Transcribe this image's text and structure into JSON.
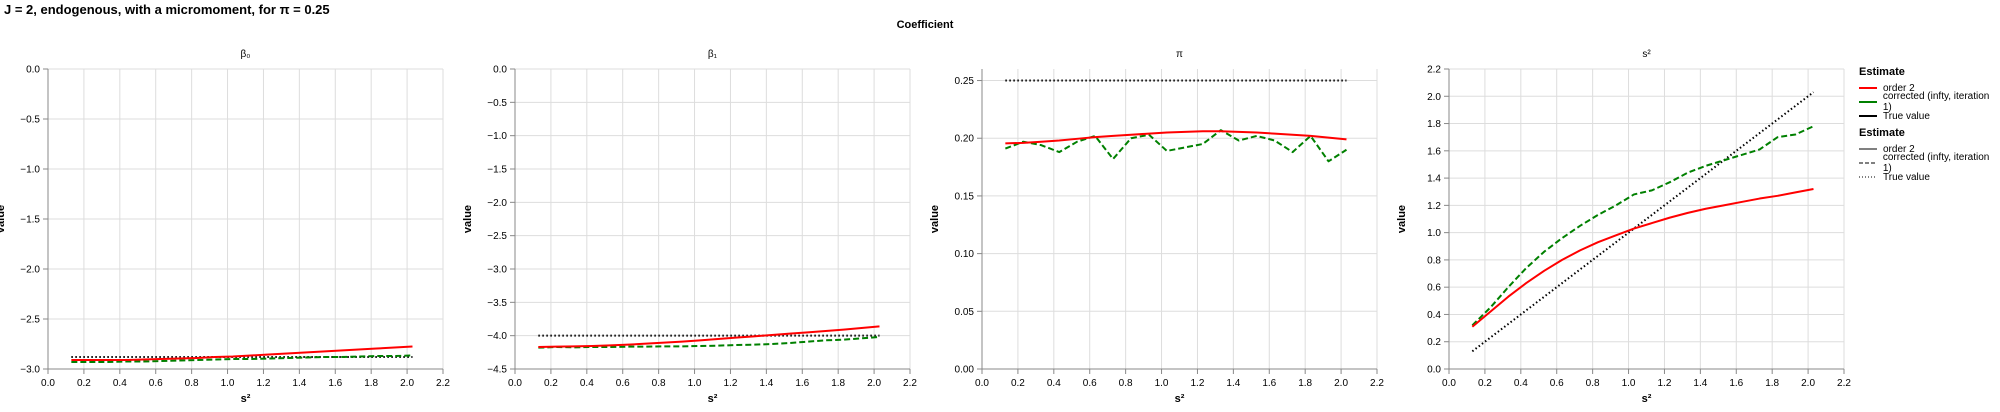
{
  "title": "J = 2, endogenous, with a micromoment,  for π = 0.25",
  "facet_header": "Coefficient",
  "colors": {
    "order2": "#ff0000",
    "corrected": "#008000",
    "true_value": "#000000",
    "grid": "#dddddd",
    "axis": "#888888"
  },
  "legends": [
    {
      "title": "Estimate",
      "items": [
        {
          "label": "order 2",
          "color": "#ff0000",
          "dash": "solid"
        },
        {
          "label": "corrected (infty, iteration 1)",
          "color": "#008000",
          "dash": "solid"
        },
        {
          "label": "True value",
          "color": "#000000",
          "dash": "solid"
        }
      ]
    },
    {
      "title": "Estimate",
      "items": [
        {
          "label": "order 2",
          "color": "#000000",
          "dash": "solid"
        },
        {
          "label": "corrected (infty, iteration 1)",
          "color": "#000000",
          "dash": "dashed"
        },
        {
          "label": "True value",
          "color": "#000000",
          "dash": "dotted"
        }
      ]
    }
  ],
  "chart_data": [
    {
      "type": "line",
      "title": "β₀",
      "xlabel": "s²",
      "ylabel": "value",
      "xlim": [
        0,
        2.2
      ],
      "ylim": [
        -3.0,
        0.0
      ],
      "xticks": [
        0.0,
        0.2,
        0.4,
        0.6,
        0.8,
        1.0,
        1.2,
        1.4,
        1.6,
        1.8,
        2.0,
        2.2
      ],
      "yticks": [
        0.0,
        -0.5,
        -1.0,
        -1.5,
        -2.0,
        -2.5,
        -3.0
      ],
      "ytick_decimals": 1,
      "x": [
        0.13,
        0.23,
        0.33,
        0.43,
        0.53,
        0.63,
        0.73,
        0.83,
        0.93,
        1.03,
        1.13,
        1.23,
        1.33,
        1.43,
        1.53,
        1.63,
        1.73,
        1.83,
        1.93,
        2.03
      ],
      "series": [
        {
          "name": "order 2",
          "color": "#ff0000",
          "dash": "solid",
          "values": [
            -2.91,
            -2.91,
            -2.91,
            -2.91,
            -2.905,
            -2.9,
            -2.895,
            -2.89,
            -2.88,
            -2.875,
            -2.865,
            -2.855,
            -2.845,
            -2.835,
            -2.825,
            -2.815,
            -2.805,
            -2.795,
            -2.785,
            -2.775
          ]
        },
        {
          "name": "corrected (infty, iteration 1)",
          "color": "#008000",
          "dash": "dashed",
          "values": [
            -2.93,
            -2.93,
            -2.93,
            -2.925,
            -2.925,
            -2.92,
            -2.915,
            -2.91,
            -2.905,
            -2.9,
            -2.9,
            -2.895,
            -2.89,
            -2.885,
            -2.88,
            -2.88,
            -2.875,
            -2.87,
            -2.87,
            -2.865
          ]
        },
        {
          "name": "True value",
          "color": "#000000",
          "dash": "dotted",
          "values": [
            -2.88,
            -2.88,
            -2.88,
            -2.88,
            -2.88,
            -2.88,
            -2.88,
            -2.88,
            -2.88,
            -2.88,
            -2.88,
            -2.88,
            -2.88,
            -2.88,
            -2.88,
            -2.88,
            -2.88,
            -2.88,
            -2.88,
            -2.88
          ]
        }
      ]
    },
    {
      "type": "line",
      "title": "β₁",
      "xlabel": "s²",
      "ylabel": "value",
      "xlim": [
        0,
        2.2
      ],
      "ylim": [
        -4.5,
        0.0
      ],
      "xticks": [
        0.0,
        0.2,
        0.4,
        0.6,
        0.8,
        1.0,
        1.2,
        1.4,
        1.6,
        1.8,
        2.0,
        2.2
      ],
      "yticks": [
        0.0,
        -0.5,
        -1.0,
        -1.5,
        -2.0,
        -2.5,
        -3.0,
        -3.5,
        -4.0,
        -4.5
      ],
      "ytick_decimals": 1,
      "x": [
        0.13,
        0.23,
        0.33,
        0.43,
        0.53,
        0.63,
        0.73,
        0.83,
        0.93,
        1.03,
        1.13,
        1.23,
        1.33,
        1.43,
        1.53,
        1.63,
        1.73,
        1.83,
        1.93,
        2.03
      ],
      "series": [
        {
          "name": "order 2",
          "color": "#ff0000",
          "dash": "solid",
          "values": [
            -4.17,
            -4.165,
            -4.16,
            -4.155,
            -4.145,
            -4.135,
            -4.12,
            -4.105,
            -4.09,
            -4.07,
            -4.05,
            -4.03,
            -4.01,
            -3.99,
            -3.97,
            -3.95,
            -3.93,
            -3.91,
            -3.885,
            -3.86
          ]
        },
        {
          "name": "corrected (infty, iteration 1)",
          "color": "#008000",
          "dash": "dashed",
          "values": [
            -4.18,
            -4.17,
            -4.175,
            -4.17,
            -4.17,
            -4.165,
            -4.165,
            -4.16,
            -4.16,
            -4.155,
            -4.15,
            -4.14,
            -4.135,
            -4.125,
            -4.11,
            -4.09,
            -4.07,
            -4.06,
            -4.04,
            -4.02
          ]
        },
        {
          "name": "True value",
          "color": "#000000",
          "dash": "dotted",
          "values": [
            -4.0,
            -4.0,
            -4.0,
            -4.0,
            -4.0,
            -4.0,
            -4.0,
            -4.0,
            -4.0,
            -4.0,
            -4.0,
            -4.0,
            -4.0,
            -4.0,
            -4.0,
            -4.0,
            -4.0,
            -4.0,
            -4.0,
            -4.0
          ]
        }
      ]
    },
    {
      "type": "line",
      "title": "π",
      "xlabel": "s²",
      "ylabel": "value",
      "xlim": [
        0,
        2.2
      ],
      "ylim": [
        0.0,
        0.26
      ],
      "xticks": [
        0.0,
        0.2,
        0.4,
        0.6,
        0.8,
        1.0,
        1.2,
        1.4,
        1.6,
        1.8,
        2.0,
        2.2
      ],
      "yticks": [
        0.0,
        0.05,
        0.1,
        0.15,
        0.2,
        0.25
      ],
      "ytick_decimals": 2,
      "x": [
        0.13,
        0.23,
        0.33,
        0.43,
        0.53,
        0.63,
        0.73,
        0.83,
        0.93,
        1.03,
        1.13,
        1.23,
        1.33,
        1.43,
        1.53,
        1.63,
        1.73,
        1.83,
        1.93,
        2.03
      ],
      "series": [
        {
          "name": "order 2",
          "color": "#ff0000",
          "dash": "solid",
          "values": [
            0.1955,
            0.196,
            0.197,
            0.198,
            0.1995,
            0.201,
            0.202,
            0.203,
            0.204,
            0.205,
            0.2055,
            0.206,
            0.206,
            0.2055,
            0.205,
            0.204,
            0.203,
            0.202,
            0.2005,
            0.199
          ]
        },
        {
          "name": "corrected (infty, iteration 1)",
          "color": "#008000",
          "dash": "dashed",
          "values": [
            0.191,
            0.197,
            0.194,
            0.188,
            0.197,
            0.202,
            0.182,
            0.2,
            0.203,
            0.189,
            0.192,
            0.195,
            0.207,
            0.198,
            0.202,
            0.198,
            0.188,
            0.202,
            0.18,
            0.19
          ]
        },
        {
          "name": "True value",
          "color": "#000000",
          "dash": "dotted",
          "values": [
            0.25,
            0.25,
            0.25,
            0.25,
            0.25,
            0.25,
            0.25,
            0.25,
            0.25,
            0.25,
            0.25,
            0.25,
            0.25,
            0.25,
            0.25,
            0.25,
            0.25,
            0.25,
            0.25,
            0.25
          ]
        }
      ]
    },
    {
      "type": "line",
      "title": "s²",
      "xlabel": "s²",
      "ylabel": "value",
      "xlim": [
        0,
        2.2
      ],
      "ylim": [
        0.0,
        2.2
      ],
      "xticks": [
        0.0,
        0.2,
        0.4,
        0.6,
        0.8,
        1.0,
        1.2,
        1.4,
        1.6,
        1.8,
        2.0,
        2.2
      ],
      "yticks": [
        0.0,
        0.2,
        0.4,
        0.6,
        0.8,
        1.0,
        1.2,
        1.4,
        1.6,
        1.8,
        2.0,
        2.2
      ],
      "ytick_decimals": 1,
      "x": [
        0.13,
        0.23,
        0.33,
        0.43,
        0.53,
        0.63,
        0.73,
        0.83,
        0.93,
        1.03,
        1.13,
        1.23,
        1.33,
        1.43,
        1.53,
        1.63,
        1.73,
        1.83,
        1.93,
        2.03
      ],
      "series": [
        {
          "name": "order 2",
          "color": "#ff0000",
          "dash": "solid",
          "values": [
            0.31,
            0.42,
            0.53,
            0.63,
            0.72,
            0.8,
            0.87,
            0.93,
            0.98,
            1.03,
            1.07,
            1.11,
            1.145,
            1.175,
            1.2,
            1.225,
            1.25,
            1.27,
            1.295,
            1.32
          ]
        },
        {
          "name": "corrected (infty, iteration 1)",
          "color": "#008000",
          "dash": "dashed",
          "values": [
            0.32,
            0.45,
            0.6,
            0.74,
            0.86,
            0.96,
            1.05,
            1.13,
            1.2,
            1.28,
            1.31,
            1.37,
            1.44,
            1.49,
            1.53,
            1.57,
            1.61,
            1.7,
            1.72,
            1.78
          ]
        },
        {
          "name": "True value",
          "color": "#000000",
          "dash": "dotted",
          "values": [
            0.13,
            0.23,
            0.33,
            0.43,
            0.53,
            0.63,
            0.73,
            0.83,
            0.93,
            1.03,
            1.13,
            1.23,
            1.33,
            1.43,
            1.53,
            1.63,
            1.73,
            1.83,
            1.93,
            2.03
          ]
        }
      ]
    }
  ]
}
